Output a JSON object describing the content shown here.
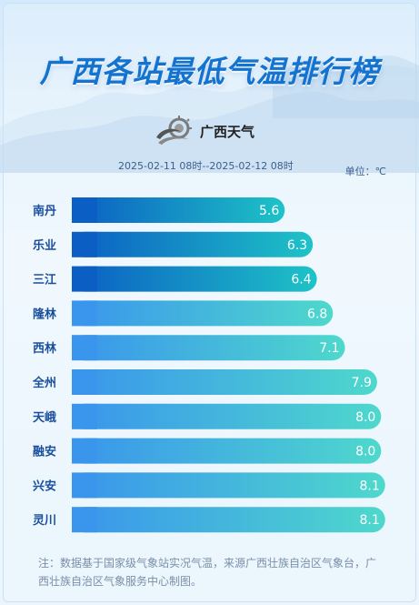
{
  "title": "广西各站最低气温排行榜",
  "logo": {
    "text": "广西天气",
    "icon": "weather-logo-icon"
  },
  "period": "2025-02-11 08时--2025-02-12 08时",
  "unit_label": "单位：℃",
  "note": "注：数据基于国家级气象站实况气温，来源广西壮族自治区气象台，广西壮族自治区气象服务中心制图。",
  "colors": {
    "title": "#1473cf",
    "bar_dark_start": "#0b5ec3",
    "bar_dark_end": "#1ec3c7",
    "bar_light_start": "#3a95ec",
    "bar_light_end": "#4ed8cc",
    "category_label": "#1a4f9c"
  },
  "chart_data": {
    "type": "bar",
    "orientation": "horizontal",
    "categories": [
      "南丹",
      "乐业",
      "三江",
      "隆林",
      "西林",
      "全州",
      "天峨",
      "融安",
      "兴安",
      "灵川"
    ],
    "values": [
      5.6,
      6.3,
      6.4,
      6.8,
      7.1,
      7.9,
      8.0,
      8.0,
      8.1,
      8.1
    ],
    "value_labels": [
      "5.6",
      "6.3",
      "6.4",
      "6.8",
      "7.1",
      "7.9",
      "8.0",
      "8.0",
      "8.1",
      "8.1"
    ],
    "title": "广西各站最低气温排行榜",
    "xlabel": "",
    "ylabel": "",
    "grid": false,
    "legend": "none"
  }
}
